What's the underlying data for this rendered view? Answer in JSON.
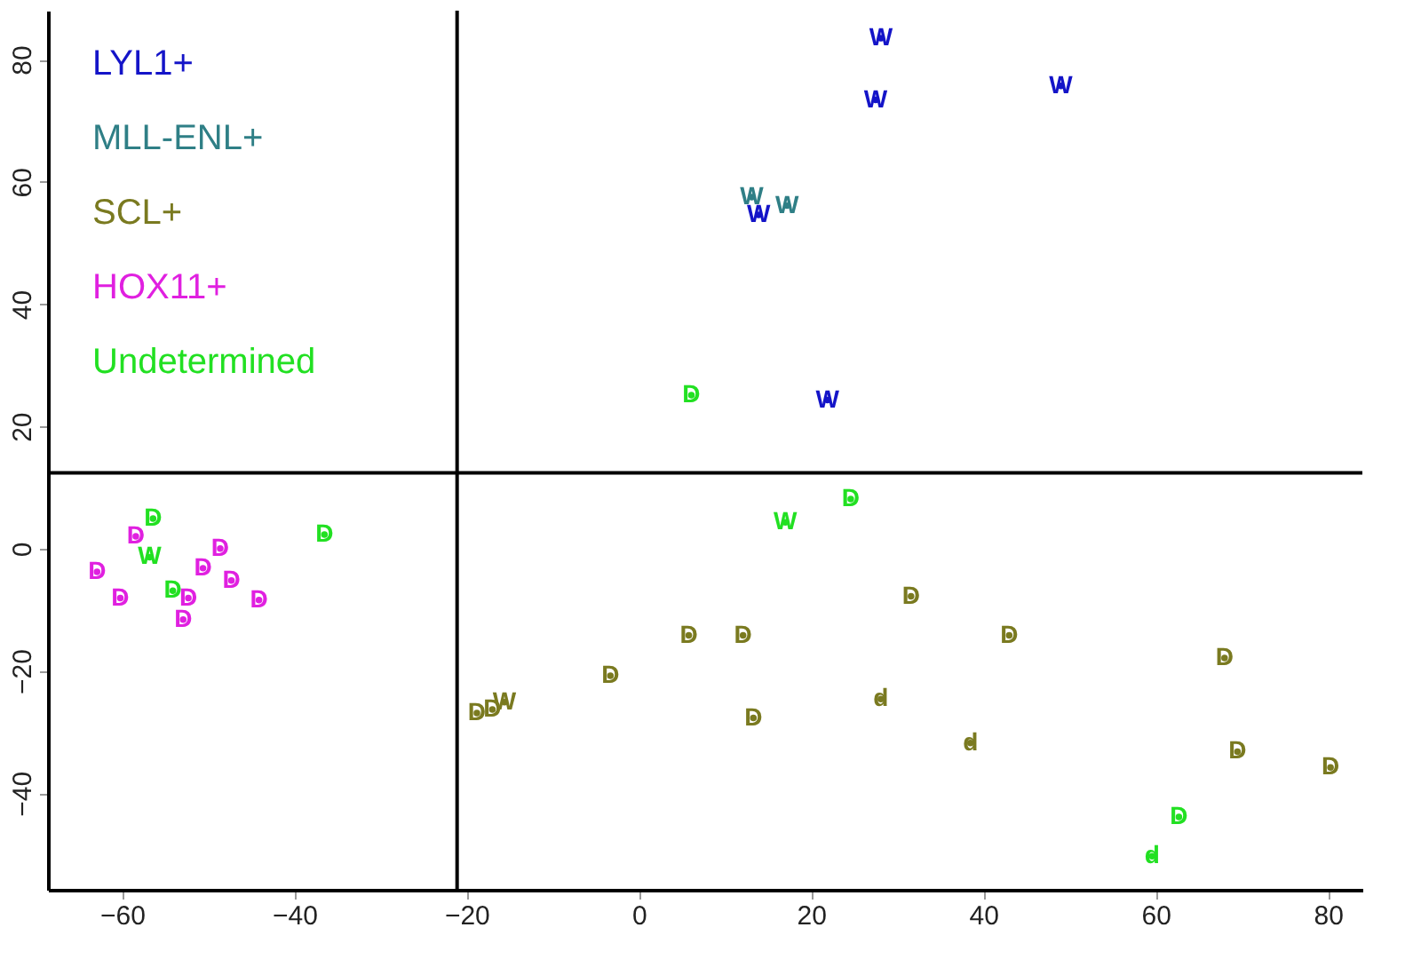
{
  "chart_data": {
    "type": "scatter",
    "marker": "none",
    "grid": false,
    "xlim": [
      -68.6,
      84
    ],
    "ylim": [
      -55.8,
      88
    ],
    "xticks": [
      -60,
      -40,
      -20,
      0,
      20,
      40,
      60,
      80
    ],
    "yticks": [
      -40,
      -20,
      0,
      20,
      40,
      60,
      80
    ],
    "ref_lines": [
      {
        "axis": "x",
        "value": -21.1,
        "color": "#000000"
      },
      {
        "axis": "y",
        "value": 12.4,
        "color": "#000000"
      }
    ],
    "series": [
      {
        "name": "LYL1+",
        "color": "#1414c8",
        "x": [
          28.1,
          27.5,
          49,
          21.9,
          13.9
        ],
        "values": [
          83.5,
          73.4,
          75.7,
          24.3,
          54.6
        ],
        "value_labels": [
          "W",
          "W",
          "W",
          "W",
          "W"
        ]
      },
      {
        "name": "MLL-ENL+",
        "color": "#2f7f86",
        "x": [
          13.1,
          17.2
        ],
        "values": [
          57.5,
          56.1
        ],
        "value_labels": [
          "W",
          "W"
        ]
      },
      {
        "name": "SCL+",
        "color": "#7a7a20",
        "x": [
          -18.8,
          -17.0,
          -15.6,
          -3.3,
          5.8,
          12.1,
          31.6,
          43.0,
          68.0,
          13.3,
          28.1,
          38.5,
          69.5,
          80.3
        ],
        "values": [
          -26.9,
          -26.3,
          -25.1,
          -20.8,
          -14.2,
          -14.2,
          -7.8,
          -14.2,
          -17.9,
          -27.7,
          -24.6,
          -31.8,
          -33.2,
          -35.8
        ],
        "value_labels": [
          "D",
          "D",
          "W",
          "D",
          "D",
          "D",
          "D",
          "D",
          "D",
          "D",
          "d",
          "d",
          "D",
          "D"
        ]
      },
      {
        "name": "HOX11+",
        "color": "#e020e0",
        "x": [
          -58.4,
          -62.9,
          -60.2,
          -50.6,
          -48.6,
          -47.3,
          -44.1,
          -52.3,
          -52.9
        ],
        "values": [
          2.0,
          -3.8,
          -8.1,
          -3.2,
          0,
          -5.2,
          -8.4,
          -8.1,
          -11.6
        ],
        "value_labels": [
          "D",
          "D",
          "D",
          "D",
          "D",
          "D",
          "D",
          "D",
          "D"
        ]
      },
      {
        "name": "Undetermined",
        "color": "#22e022",
        "x": [
          6.1,
          17,
          24.6,
          62.7,
          59.6,
          -56.4,
          -56.8,
          -54.1,
          -36.5
        ],
        "values": [
          25.1,
          4.3,
          8.1,
          -43.9,
          -50.3,
          4.9,
          -1.4,
          -6.9,
          2.3
        ],
        "value_labels": [
          "D",
          "W",
          "D",
          "D",
          "d",
          "D",
          "W",
          "D",
          "D"
        ]
      }
    ]
  }
}
